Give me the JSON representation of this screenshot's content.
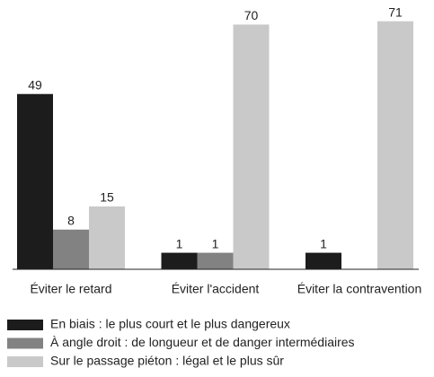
{
  "chart_data": {
    "type": "bar",
    "categories": [
      "Éviter le retard",
      "Éviter l'accident",
      "Éviter la contravention"
    ],
    "series": [
      {
        "name": "En biais : le plus court et le plus dangereux",
        "color": "#1c1c1c",
        "values": [
          49,
          1,
          1
        ]
      },
      {
        "name": "À angle droit : de longueur et de danger intermédiaires",
        "color": "#828282",
        "values": [
          8,
          1,
          null
        ]
      },
      {
        "name": "Sur le passage piéton : légal et le plus sûr",
        "color": "#c9c9c9",
        "values": [
          15,
          70,
          71
        ]
      }
    ],
    "ylim": [
      -4,
      72
    ]
  }
}
